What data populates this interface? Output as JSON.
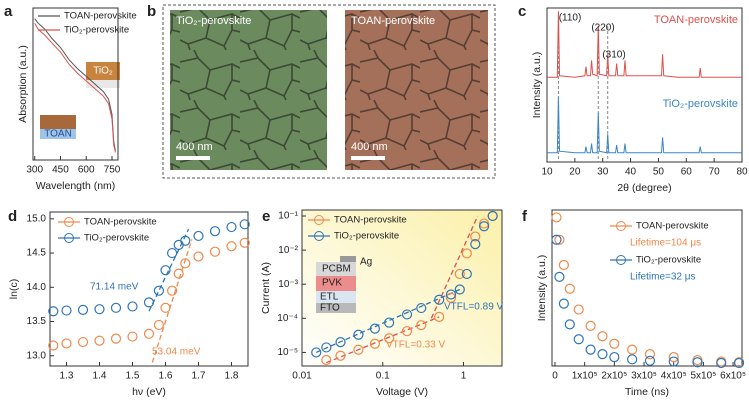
{
  "chart_data": [
    {
      "panel": "a",
      "type": "line",
      "xlabel": "Wavelength (nm)",
      "ylabel": "Absorption (a.u.)",
      "x": [
        300,
        320,
        340,
        360,
        400,
        450,
        500,
        550,
        600,
        650,
        700,
        730,
        750,
        760,
        770
      ],
      "xlim": [
        290,
        785
      ],
      "xticks": [
        300,
        450,
        600,
        750
      ],
      "ylim": [
        0,
        1
      ],
      "series": [
        {
          "name": "TOAN-perovskite",
          "color": "#555555",
          "values": [
            0.93,
            0.9,
            0.88,
            0.86,
            0.8,
            0.74,
            0.66,
            0.6,
            0.55,
            0.5,
            0.45,
            0.4,
            0.3,
            0.12,
            0.06
          ]
        },
        {
          "name": "TiO₂-perovskite",
          "color": "#d9534f",
          "values": [
            0.9,
            0.86,
            0.84,
            0.82,
            0.77,
            0.71,
            0.63,
            0.57,
            0.52,
            0.47,
            0.42,
            0.37,
            0.27,
            0.1,
            0.05
          ]
        }
      ],
      "legend": "upper left",
      "annotations": [
        "TiO₂",
        "TOAN"
      ]
    },
    {
      "panel": "c",
      "type": "line",
      "xlabel": "2θ (degree)",
      "ylabel": "Intensity (a.u.)",
      "x": [
        10,
        13.7,
        14.1,
        14.5,
        20,
        23.6,
        24,
        24.4,
        25.6,
        26,
        26.4,
        28,
        28.4,
        28.8,
        31.4,
        31.8,
        32.2,
        34.6,
        35,
        35.4,
        37.6,
        38,
        38.4,
        43,
        51.1,
        51.5,
        51.9,
        57,
        64.6,
        65,
        65.4,
        70,
        80
      ],
      "xlim": [
        10,
        80
      ],
      "xticks": [
        10,
        20,
        30,
        40,
        50,
        60,
        70,
        80
      ],
      "ylim": [
        0,
        1
      ],
      "series": [
        {
          "name": "TOAN-perovskite",
          "color": "#e0504a",
          "values": [
            0.55,
            0.55,
            0.98,
            0.56,
            0.55,
            0.56,
            0.62,
            0.56,
            0.56,
            0.66,
            0.57,
            0.56,
            0.88,
            0.57,
            0.56,
            0.7,
            0.56,
            0.56,
            0.64,
            0.56,
            0.56,
            0.66,
            0.56,
            0.56,
            0.56,
            0.7,
            0.56,
            0.55,
            0.55,
            0.61,
            0.55,
            0.55,
            0.55
          ]
        },
        {
          "name": "TiO₂-perovskite",
          "color": "#3a86c8",
          "values": [
            0.06,
            0.06,
            0.42,
            0.07,
            0.06,
            0.06,
            0.1,
            0.06,
            0.06,
            0.12,
            0.06,
            0.06,
            0.32,
            0.07,
            0.06,
            0.18,
            0.06,
            0.06,
            0.11,
            0.06,
            0.06,
            0.12,
            0.06,
            0.06,
            0.06,
            0.16,
            0.06,
            0.06,
            0.06,
            0.1,
            0.06,
            0.06,
            0.06
          ]
        }
      ],
      "ref_lines": [
        14.1,
        28.4,
        31.8
      ],
      "annotations": [
        "(110)",
        "(220)",
        "(310)"
      ]
    },
    {
      "panel": "d",
      "type": "scatter",
      "xlabel": "hν (eV)",
      "ylabel": "ln(c)",
      "x": [
        1.26,
        1.3,
        1.35,
        1.4,
        1.45,
        1.5,
        1.55,
        1.58,
        1.6,
        1.62,
        1.64,
        1.66,
        1.7,
        1.75,
        1.8,
        1.84
      ],
      "xlim": [
        1.25,
        1.85
      ],
      "xticks": [
        1.3,
        1.4,
        1.5,
        1.6,
        1.7,
        1.8
      ],
      "ylim": [
        12.85,
        15.1
      ],
      "yticks": [
        {
          "value": 13,
          "label": "13.0"
        },
        {
          "value": 13.5,
          "label": "13.5"
        },
        {
          "value": 14,
          "label": "14.0"
        },
        {
          "value": 14.5,
          "label": "14.5"
        },
        {
          "value": 15,
          "label": "15.0"
        }
      ],
      "series": [
        {
          "name": "TOAN-perovskite",
          "color": "#f0884a",
          "values": [
            13.15,
            13.18,
            13.2,
            13.22,
            13.25,
            13.28,
            13.32,
            13.45,
            13.7,
            13.95,
            14.2,
            14.35,
            14.45,
            14.52,
            14.6,
            14.65
          ]
        },
        {
          "name": "TiO₂-perovskite",
          "color": "#2e75b6",
          "values": [
            13.65,
            13.66,
            13.67,
            13.68,
            13.7,
            13.72,
            13.78,
            13.95,
            14.25,
            14.5,
            14.62,
            14.68,
            14.75,
            14.82,
            14.88,
            14.92
          ]
        }
      ],
      "fits": [
        {
          "color": "#2e75b6",
          "x": [
            1.55,
            1.67
          ],
          "y": [
            13.65,
            14.85
          ]
        },
        {
          "color": "#f0884a",
          "x": [
            1.56,
            1.68
          ],
          "y": [
            12.9,
            14.7
          ]
        }
      ],
      "annotations": [
        "71.14 meV",
        "53.04 meV"
      ]
    },
    {
      "panel": "e",
      "type": "scatter",
      "xlabel": "Voltage (V)",
      "ylabel": "Current (A)",
      "xlog": true,
      "ylog": true,
      "x": [
        0.015,
        0.02,
        0.03,
        0.05,
        0.08,
        0.12,
        0.2,
        0.3,
        0.5,
        0.7,
        0.9,
        1.1,
        1.4,
        1.8,
        2.3
      ],
      "xlim": [
        0.01,
        3
      ],
      "xticks": [
        0.01,
        0.1,
        1
      ],
      "ylim": [
        4e-06,
        0.15
      ],
      "yticks": [
        {
          "value": 1e-05,
          "label": "10⁻⁵"
        },
        {
          "value": 0.0001,
          "label": "10⁻⁴"
        },
        {
          "value": 0.001,
          "label": "10⁻³"
        },
        {
          "value": 0.01,
          "label": "10⁻²"
        },
        {
          "value": 0.1,
          "label": "10⁻¹"
        }
      ],
      "series": [
        {
          "name": "TOAN-perovskite",
          "color": "#f0884a",
          "values": [
            null,
            6e-06,
            8e-06,
            1.2e-05,
            1.8e-05,
            2.6e-05,
            4.2e-05,
            6.3e-05,
            0.00011,
            0.0004,
            0.002,
            0.008,
            0.025,
            0.06,
            0.1
          ]
        },
        {
          "name": "TiO₂-perovskite",
          "color": "#2e75b6",
          "values": [
            1e-05,
            1.4e-05,
            2e-05,
            3.3e-05,
            5e-05,
            7.5e-05,
            0.00013,
            0.0002,
            0.00035,
            0.0005,
            0.0007,
            0.002,
            0.015,
            0.05,
            0.1
          ]
        }
      ],
      "fits": [
        {
          "color": "#2e75b6",
          "x": [
            0.015,
            0.9
          ],
          "y": [
            1e-05,
            0.0007
          ]
        },
        {
          "color": "#e0504a",
          "x": [
            0.02,
            0.5
          ],
          "y": [
            5e-06,
            0.00011
          ]
        },
        {
          "color": "#e0504a",
          "x": [
            0.4,
            1.5
          ],
          "y": [
            0.0001,
            0.1
          ]
        }
      ],
      "annotations": [
        "VTFL=0.89 V",
        "VTFL=0.33 V",
        "PCBM",
        "Ag",
        "PVK",
        "ETL",
        "FTO"
      ]
    },
    {
      "panel": "f",
      "type": "scatter",
      "xlabel": "Time (ns)",
      "ylabel": "Intensity (a.u.)",
      "x": [
        5000,
        15000,
        30000,
        50000,
        80000,
        120000,
        160000,
        200000,
        260000,
        320000,
        400000,
        480000,
        560000,
        620000
      ],
      "xlim": [
        -10000,
        630000
      ],
      "xticks": [
        0,
        {
          "value": 100000,
          "label": "1x10⁵"
        },
        {
          "value": 200000,
          "label": "2x10⁵"
        },
        {
          "value": 300000,
          "label": "3x10⁵"
        },
        {
          "value": 400000,
          "label": "4x10⁵"
        },
        {
          "value": 500000,
          "label": "5x10⁵"
        },
        {
          "value": 600000,
          "label": "6x10⁵"
        }
      ],
      "ylim": [
        0,
        1.05
      ],
      "series": [
        {
          "name": "TOAN-perovskite",
          "color": "#f0884a",
          "values": [
            1.0,
            0.85,
            0.68,
            0.52,
            0.38,
            0.27,
            0.2,
            0.15,
            0.11,
            0.08,
            0.06,
            0.04,
            0.03,
            0.025
          ]
        },
        {
          "name": "TiO₂-perovskite",
          "color": "#2e75b6",
          "values": [
            0.85,
            0.6,
            0.42,
            0.28,
            0.18,
            0.11,
            0.08,
            0.06,
            0.045,
            0.035,
            0.03,
            0.025,
            0.02,
            0.02
          ]
        }
      ],
      "annotations": [
        "Lifetime=104 μs",
        "Lifetime=32 μs"
      ]
    }
  ],
  "image_panel": {
    "panel": "b",
    "images": [
      {
        "caption": "TiO₂-perovskite",
        "scale_bar": "400 nm"
      },
      {
        "caption": "TOAN-perovskite",
        "scale_bar": "400 nm"
      }
    ]
  }
}
